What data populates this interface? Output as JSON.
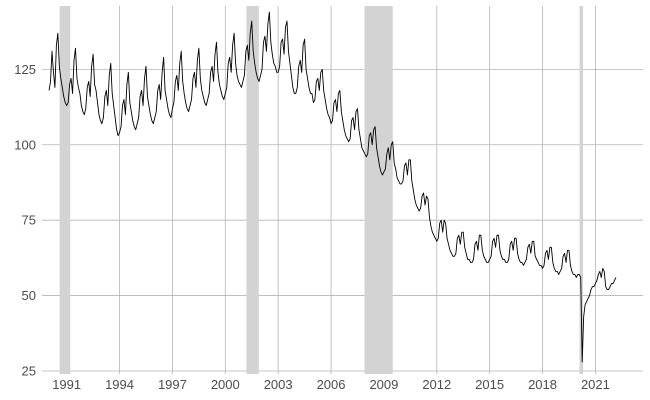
{
  "chart_data": {
    "type": "line",
    "title": "",
    "xlabel": "",
    "ylabel": "",
    "grid": true,
    "legend": "none",
    "colors": {
      "series": "#000000",
      "recession_band": "#d3d3d3",
      "grid": "#b5b5b5",
      "tick_text": "#4d4d4d",
      "background": "#ffffff"
    },
    "xlim": [
      1989.6,
      2023.7
    ],
    "ylim": [
      24,
      146
    ],
    "x_ticks": [
      1991,
      1994,
      1997,
      2000,
      2003,
      2006,
      2009,
      2012,
      2015,
      2018,
      2021
    ],
    "x_tick_labels": [
      "1991",
      "1994",
      "1997",
      "2000",
      "2003",
      "2006",
      "2009",
      "2012",
      "2015",
      "2018",
      "2021"
    ],
    "y_ticks": [
      25,
      50,
      75,
      100,
      125
    ],
    "y_tick_labels": [
      "25",
      "50",
      "75",
      "100",
      "125"
    ],
    "recessions": [
      {
        "start": 1990.6,
        "end": 1991.2
      },
      {
        "start": 2001.2,
        "end": 2001.9
      },
      {
        "start": 2007.9,
        "end": 2009.5
      },
      {
        "start": 2020.1,
        "end": 2020.3
      }
    ],
    "series": [
      {
        "name": "",
        "frequency": "monthly",
        "x_start": 1990.0,
        "values": [
          118,
          121,
          131,
          124,
          119,
          133,
          137,
          126,
          122,
          119,
          116,
          114,
          113,
          114,
          120,
          122,
          117,
          128,
          132,
          122,
          119,
          117,
          113,
          111,
          110,
          112,
          119,
          121,
          116,
          126,
          130,
          120,
          118,
          114,
          110,
          108,
          107,
          109,
          116,
          118,
          113,
          123,
          127,
          117,
          113,
          109,
          105,
          103,
          104,
          106,
          113,
          115,
          110,
          120,
          124,
          114,
          111,
          108,
          106,
          105,
          107,
          109,
          116,
          118,
          113,
          122,
          126,
          116,
          113,
          110,
          108,
          107,
          109,
          111,
          118,
          120,
          115,
          124,
          129,
          118,
          115,
          112,
          110,
          109,
          112,
          114,
          121,
          123,
          118,
          127,
          131,
          121,
          117,
          114,
          112,
          111,
          113,
          115,
          122,
          124,
          119,
          128,
          132,
          122,
          118,
          116,
          114,
          113,
          115,
          117,
          124,
          126,
          121,
          130,
          134,
          124,
          120,
          118,
          116,
          115,
          117,
          119,
          127,
          129,
          124,
          133,
          137,
          127,
          123,
          121,
          120,
          119,
          121,
          123,
          131,
          133,
          128,
          137,
          141,
          131,
          127,
          124,
          122,
          121,
          123,
          125,
          134,
          136,
          131,
          140,
          144,
          134,
          130,
          127,
          126,
          124,
          124,
          126,
          134,
          135,
          130,
          139,
          141,
          131,
          127,
          123,
          119,
          117,
          117,
          119,
          126,
          128,
          124,
          133,
          135,
          125,
          122,
          119,
          117,
          117,
          114,
          115,
          121,
          122,
          118,
          124,
          125,
          118,
          115,
          112,
          110,
          109,
          107,
          108,
          114,
          115,
          111,
          117,
          118,
          111,
          108,
          105,
          103,
          102,
          101,
          102,
          108,
          109,
          105,
          111,
          112,
          105,
          102,
          99,
          98,
          97,
          96,
          97,
          103,
          104,
          100,
          105,
          106,
          99,
          96,
          93,
          91,
          90,
          91,
          92,
          97,
          99,
          95,
          100,
          101,
          94,
          92,
          89,
          88,
          87,
          87,
          88,
          93,
          94,
          90,
          95,
          95,
          88,
          85,
          82,
          80,
          79,
          78,
          79,
          83,
          84,
          80,
          83,
          82,
          76,
          73,
          71,
          70,
          69,
          68,
          69,
          74,
          75,
          71,
          75,
          74,
          69,
          67,
          65,
          64,
          63,
          63,
          64,
          69,
          70,
          67,
          71,
          71,
          66,
          64,
          62,
          62,
          61,
          61,
          62,
          67,
          68,
          65,
          70,
          70,
          65,
          63,
          62,
          61,
          61,
          62,
          63,
          68,
          69,
          66,
          70,
          70,
          65,
          63,
          62,
          62,
          61,
          61,
          62,
          67,
          68,
          65,
          69,
          69,
          64,
          62,
          61,
          61,
          60,
          61,
          62,
          66,
          67,
          64,
          68,
          68,
          63,
          62,
          61,
          60,
          60,
          59,
          60,
          64,
          65,
          62,
          66,
          66,
          61,
          59,
          58,
          58,
          57,
          58,
          59,
          63,
          64,
          61,
          65,
          65,
          60,
          58,
          57,
          57,
          56,
          57,
          57,
          56,
          28,
          43,
          47,
          48,
          49,
          50,
          52,
          53,
          53,
          54,
          55,
          57,
          58,
          56,
          59,
          58,
          53,
          52,
          52,
          53,
          54,
          54,
          55,
          56
        ]
      }
    ]
  }
}
